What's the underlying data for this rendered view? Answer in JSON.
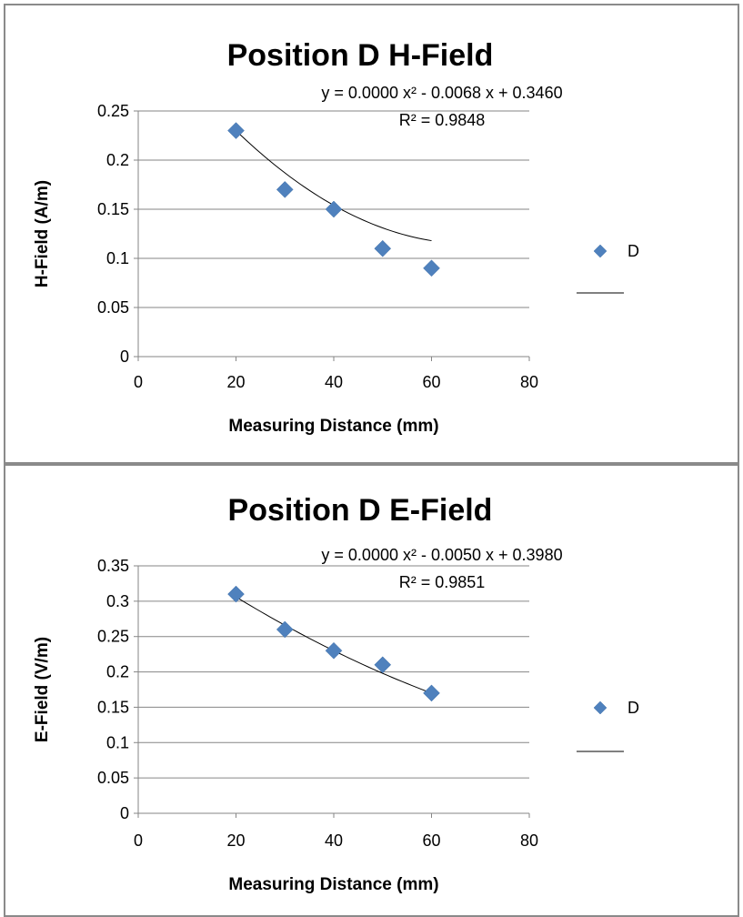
{
  "chart_data": [
    {
      "type": "scatter",
      "title": "Position D H-Field",
      "xlabel": "Measuring Distance (mm)",
      "ylabel": "H-Field (A/m)",
      "xlim": [
        0,
        80
      ],
      "ylim": [
        0,
        0.25
      ],
      "xticks": [
        "0",
        "20",
        "40",
        "60",
        "80"
      ],
      "yticks": [
        "0",
        "0.05",
        "0.1",
        "0.15",
        "0.2",
        "0.25"
      ],
      "grid": "horizontal",
      "legend": "right",
      "series": [
        {
          "name": "D",
          "x": [
            20,
            30,
            40,
            50,
            60
          ],
          "y": [
            0.23,
            0.17,
            0.15,
            0.11,
            0.09
          ],
          "color": "#4f81bd",
          "marker": "diamond"
        }
      ],
      "trendline": {
        "type": "polynomial",
        "coefficients": [
          0.346,
          -0.0068,
          5e-05
        ],
        "equation": "y = 0.0000 x² - 0.0068 x + 0.3460",
        "r2": "R² = 0.9848",
        "color": "#000000"
      }
    },
    {
      "type": "scatter",
      "title": "Position D E-Field",
      "xlabel": "Measuring Distance (mm)",
      "ylabel": "E-Field (V/m)",
      "xlim": [
        0,
        80
      ],
      "ylim": [
        0,
        0.35
      ],
      "xticks": [
        "0",
        "20",
        "40",
        "60",
        "80"
      ],
      "yticks": [
        "0",
        "0.05",
        "0.1",
        "0.15",
        "0.2",
        "0.25",
        "0.3",
        "0.35"
      ],
      "grid": "horizontal",
      "legend": "right",
      "series": [
        {
          "name": "D",
          "x": [
            20,
            30,
            40,
            50,
            60
          ],
          "y": [
            0.31,
            0.26,
            0.23,
            0.21,
            0.17
          ],
          "color": "#4f81bd",
          "marker": "diamond"
        }
      ],
      "trendline": {
        "type": "polynomial",
        "coefficients": [
          0.398,
          -0.005,
          2e-05
        ],
        "equation": "y = 0.0000 x² - 0.0050 x + 0.3980",
        "r2": "R² = 0.9851",
        "color": "#000000"
      }
    }
  ]
}
